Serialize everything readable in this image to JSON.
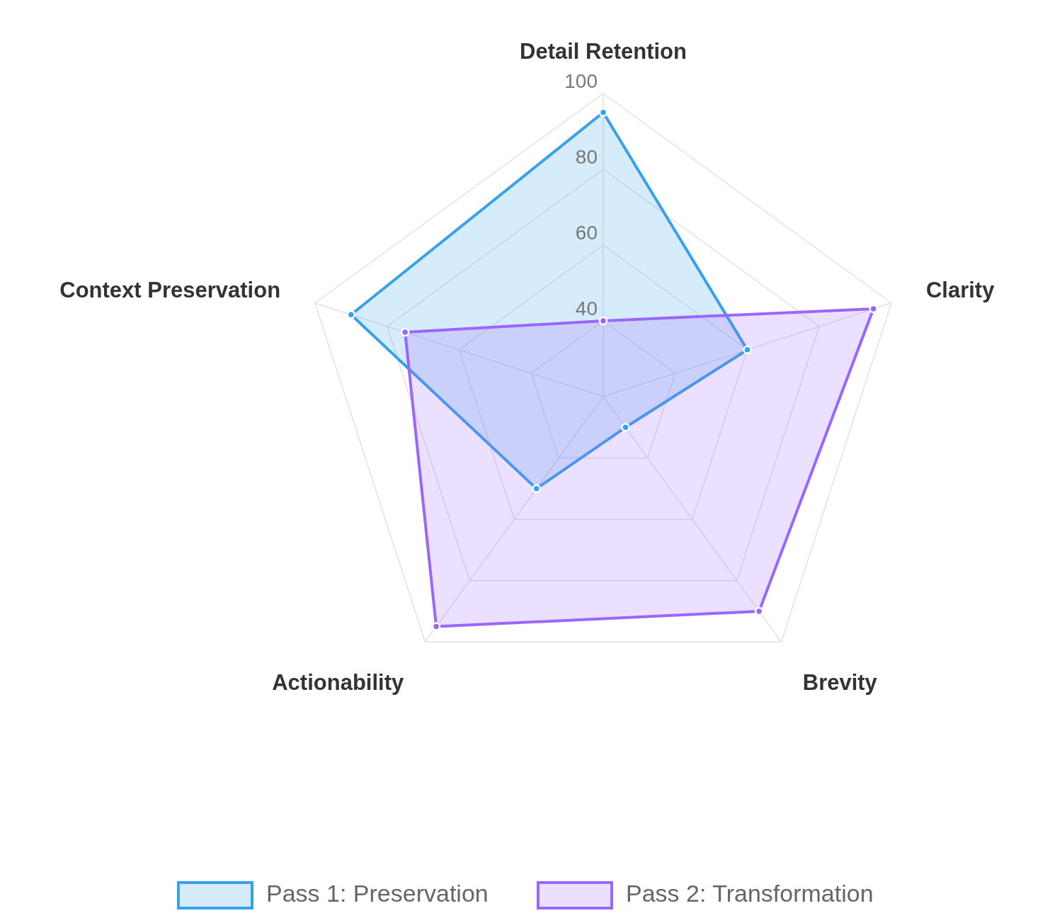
{
  "chart_data": {
    "type": "radar",
    "categories": [
      "Detail Retention",
      "Clarity",
      "Brevity",
      "Actionability",
      "Context Preservation"
    ],
    "series": [
      {
        "name": "Pass 1: Preservation",
        "color": "#36a2eb",
        "values": [
          95,
          60,
          30,
          50,
          90
        ]
      },
      {
        "name": "Pass 2: Transformation",
        "color": "#9966ff",
        "values": [
          40,
          95,
          90,
          95,
          75
        ]
      }
    ],
    "ylim": [
      20,
      100
    ],
    "yticks": [
      40,
      60,
      80,
      100
    ],
    "grid": true,
    "legend": "bottom",
    "marker": "circle"
  }
}
